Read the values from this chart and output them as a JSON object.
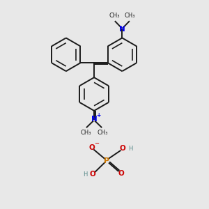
{
  "bg_color": "#e8e8e8",
  "bond_color": "#1a1a1a",
  "n_color": "#0000ee",
  "p_color": "#cc7700",
  "o_color": "#cc0000",
  "h_color": "#558888",
  "figsize": [
    3.0,
    3.0
  ],
  "dpi": 100,
  "xlim": [
    0,
    10
  ],
  "ylim": [
    0,
    10
  ]
}
